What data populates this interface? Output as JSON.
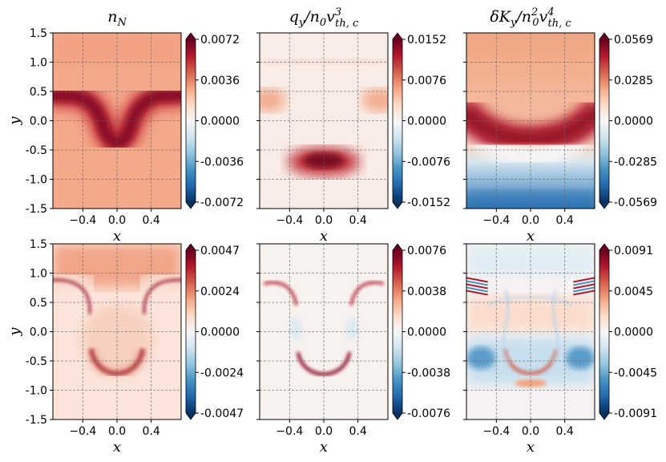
{
  "chart_data": {
    "type": "heatmap",
    "colormap": "RdBu_r",
    "grid": "dashed gray gridlines",
    "xlabel": "x",
    "ylabel": "y",
    "xlim": [
      -0.75,
      0.75
    ],
    "ylim": [
      -1.5,
      1.5
    ],
    "x_ticks": [
      "−0.4",
      "0.0",
      "0.4"
    ],
    "y_ticks": [
      "1.5",
      "1.0",
      "0.5",
      "0.0",
      "-0.5",
      "-1.0",
      "-1.5"
    ],
    "titles": [
      {
        "base": "n",
        "sub": "N"
      },
      {
        "base": "q",
        "sub": "y",
        "mid": "/n",
        "sub2": "0",
        "v": "v",
        "sup": "3",
        "sub3": "th, c"
      },
      {
        "base": "δK",
        "sub": "y",
        "mid": "/n",
        "sub2": "0",
        "sup2": "2",
        "v": "v",
        "sup": "4",
        "sub3": "th, c"
      }
    ],
    "panels": [
      {
        "row": 0,
        "col": 0,
        "field": "n_N",
        "colorbar_ticks": [
          "0.0072",
          "0.0036",
          "0.0000",
          "-0.0036",
          "-0.0072"
        ],
        "vmin": -0.0072,
        "vmax": 0.0072
      },
      {
        "row": 0,
        "col": 1,
        "field": "q_y",
        "colorbar_ticks": [
          "0.0152",
          "0.0076",
          "0.0000",
          "-0.0076",
          "-0.0152"
        ],
        "vmin": -0.0152,
        "vmax": 0.0152
      },
      {
        "row": 0,
        "col": 2,
        "field": "dK_y",
        "colorbar_ticks": [
          "0.0569",
          "0.0285",
          "0.0000",
          "-0.0285",
          "-0.0569"
        ],
        "vmin": -0.0569,
        "vmax": 0.0569
      },
      {
        "row": 1,
        "col": 0,
        "field": "n_N",
        "colorbar_ticks": [
          "0.0047",
          "0.0024",
          "0.0000",
          "-0.0024",
          "-0.0047"
        ],
        "vmin": -0.0047,
        "vmax": 0.0047
      },
      {
        "row": 1,
        "col": 1,
        "field": "q_y",
        "colorbar_ticks": [
          "0.0076",
          "0.0038",
          "0.0000",
          "-0.0038",
          "-0.0076"
        ],
        "vmin": -0.0076,
        "vmax": 0.0076
      },
      {
        "row": 1,
        "col": 2,
        "field": "dK_y",
        "colorbar_ticks": [
          "0.0091",
          "0.0045",
          "0.0000",
          "-0.0045",
          "-0.0091"
        ],
        "vmin": -0.0091,
        "vmax": 0.0091
      }
    ],
    "colors": {
      "red": "#67001f",
      "white": "#f7f7f7",
      "blue": "#053061",
      "grid": "#666666"
    }
  }
}
